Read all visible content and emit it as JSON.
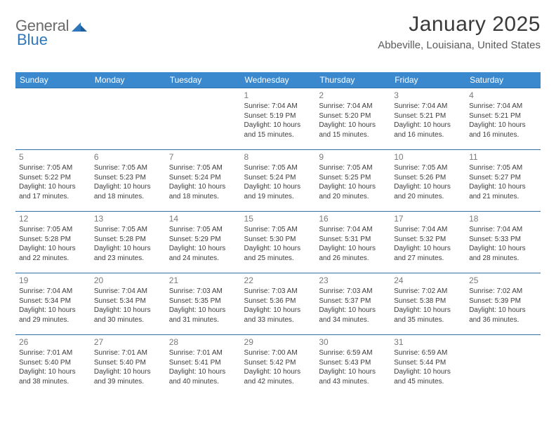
{
  "brand": {
    "text1": "General",
    "text2": "Blue"
  },
  "title": "January 2025",
  "location": "Abbeville, Louisiana, United States",
  "colors": {
    "header_bg": "#3a89cf",
    "header_text": "#ffffff",
    "row_border": "#2f6fab",
    "daynum": "#7a7a7a",
    "body_text": "#3d3d3d",
    "logo_gray": "#6a6a6a",
    "logo_blue": "#2f77bc"
  },
  "weekdays": [
    "Sunday",
    "Monday",
    "Tuesday",
    "Wednesday",
    "Thursday",
    "Friday",
    "Saturday"
  ],
  "month_start_weekday": 3,
  "days_in_month": 31,
  "days": {
    "1": {
      "sunrise": "7:04 AM",
      "sunset": "5:19 PM",
      "daylight": "10 hours and 15 minutes."
    },
    "2": {
      "sunrise": "7:04 AM",
      "sunset": "5:20 PM",
      "daylight": "10 hours and 15 minutes."
    },
    "3": {
      "sunrise": "7:04 AM",
      "sunset": "5:21 PM",
      "daylight": "10 hours and 16 minutes."
    },
    "4": {
      "sunrise": "7:04 AM",
      "sunset": "5:21 PM",
      "daylight": "10 hours and 16 minutes."
    },
    "5": {
      "sunrise": "7:05 AM",
      "sunset": "5:22 PM",
      "daylight": "10 hours and 17 minutes."
    },
    "6": {
      "sunrise": "7:05 AM",
      "sunset": "5:23 PM",
      "daylight": "10 hours and 18 minutes."
    },
    "7": {
      "sunrise": "7:05 AM",
      "sunset": "5:24 PM",
      "daylight": "10 hours and 18 minutes."
    },
    "8": {
      "sunrise": "7:05 AM",
      "sunset": "5:24 PM",
      "daylight": "10 hours and 19 minutes."
    },
    "9": {
      "sunrise": "7:05 AM",
      "sunset": "5:25 PM",
      "daylight": "10 hours and 20 minutes."
    },
    "10": {
      "sunrise": "7:05 AM",
      "sunset": "5:26 PM",
      "daylight": "10 hours and 20 minutes."
    },
    "11": {
      "sunrise": "7:05 AM",
      "sunset": "5:27 PM",
      "daylight": "10 hours and 21 minutes."
    },
    "12": {
      "sunrise": "7:05 AM",
      "sunset": "5:28 PM",
      "daylight": "10 hours and 22 minutes."
    },
    "13": {
      "sunrise": "7:05 AM",
      "sunset": "5:28 PM",
      "daylight": "10 hours and 23 minutes."
    },
    "14": {
      "sunrise": "7:05 AM",
      "sunset": "5:29 PM",
      "daylight": "10 hours and 24 minutes."
    },
    "15": {
      "sunrise": "7:05 AM",
      "sunset": "5:30 PM",
      "daylight": "10 hours and 25 minutes."
    },
    "16": {
      "sunrise": "7:04 AM",
      "sunset": "5:31 PM",
      "daylight": "10 hours and 26 minutes."
    },
    "17": {
      "sunrise": "7:04 AM",
      "sunset": "5:32 PM",
      "daylight": "10 hours and 27 minutes."
    },
    "18": {
      "sunrise": "7:04 AM",
      "sunset": "5:33 PM",
      "daylight": "10 hours and 28 minutes."
    },
    "19": {
      "sunrise": "7:04 AM",
      "sunset": "5:34 PM",
      "daylight": "10 hours and 29 minutes."
    },
    "20": {
      "sunrise": "7:04 AM",
      "sunset": "5:34 PM",
      "daylight": "10 hours and 30 minutes."
    },
    "21": {
      "sunrise": "7:03 AM",
      "sunset": "5:35 PM",
      "daylight": "10 hours and 31 minutes."
    },
    "22": {
      "sunrise": "7:03 AM",
      "sunset": "5:36 PM",
      "daylight": "10 hours and 33 minutes."
    },
    "23": {
      "sunrise": "7:03 AM",
      "sunset": "5:37 PM",
      "daylight": "10 hours and 34 minutes."
    },
    "24": {
      "sunrise": "7:02 AM",
      "sunset": "5:38 PM",
      "daylight": "10 hours and 35 minutes."
    },
    "25": {
      "sunrise": "7:02 AM",
      "sunset": "5:39 PM",
      "daylight": "10 hours and 36 minutes."
    },
    "26": {
      "sunrise": "7:01 AM",
      "sunset": "5:40 PM",
      "daylight": "10 hours and 38 minutes."
    },
    "27": {
      "sunrise": "7:01 AM",
      "sunset": "5:40 PM",
      "daylight": "10 hours and 39 minutes."
    },
    "28": {
      "sunrise": "7:01 AM",
      "sunset": "5:41 PM",
      "daylight": "10 hours and 40 minutes."
    },
    "29": {
      "sunrise": "7:00 AM",
      "sunset": "5:42 PM",
      "daylight": "10 hours and 42 minutes."
    },
    "30": {
      "sunrise": "6:59 AM",
      "sunset": "5:43 PM",
      "daylight": "10 hours and 43 minutes."
    },
    "31": {
      "sunrise": "6:59 AM",
      "sunset": "5:44 PM",
      "daylight": "10 hours and 45 minutes."
    }
  },
  "labels": {
    "sunrise": "Sunrise:",
    "sunset": "Sunset:",
    "daylight": "Daylight:"
  },
  "table": {
    "columns": 7,
    "font_size_header": 12,
    "font_size_daynum": 12,
    "font_size_body": 10
  }
}
